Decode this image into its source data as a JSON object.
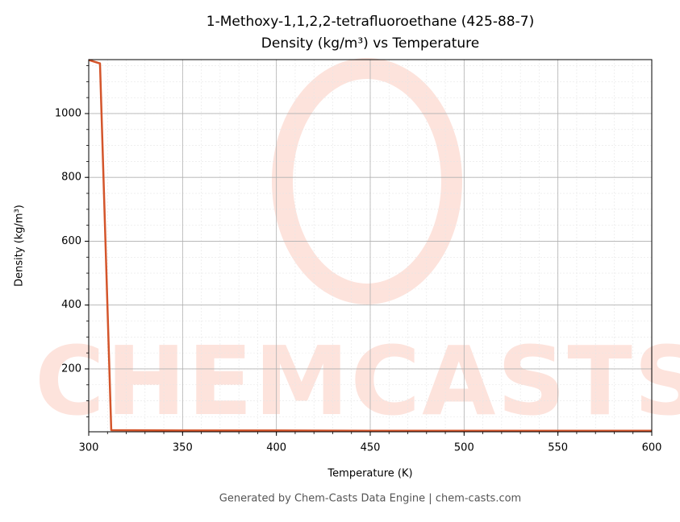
{
  "chart_data": {
    "type": "line",
    "title": "1-Methoxy-1,1,2,2-tetrafluoroethane (425-88-7)",
    "subtitle": "Density (kg/m³) vs Temperature",
    "x_label": "Temperature (K)",
    "y_label": "Density (kg/m³)",
    "footer": "Generated by Chem-Casts Data Engine | chem-casts.com",
    "watermark": "CHEMCASTS",
    "x": [
      300,
      306,
      312,
      350,
      400,
      450,
      500,
      550,
      600
    ],
    "series": [
      {
        "name": "Density",
        "color": "#d4552b",
        "values": [
          1168,
          1157,
          8,
          7,
          7,
          6,
          6,
          6,
          6
        ]
      }
    ],
    "xlim": [
      300,
      600
    ],
    "xticks": [
      300,
      350,
      400,
      450,
      500,
      550,
      600
    ],
    "ylim": [
      3,
      1169
    ],
    "yticks": [
      200,
      400,
      600,
      800,
      1000
    ],
    "grid": true,
    "minor_grid": true
  }
}
